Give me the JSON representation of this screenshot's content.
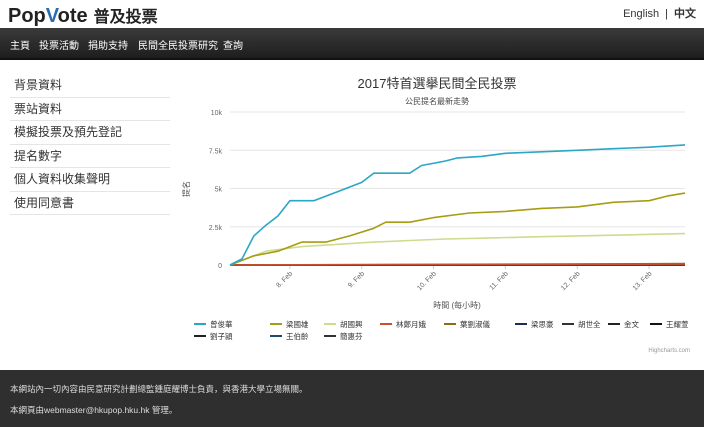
{
  "site": {
    "logo_left": "Pop",
    "logo_v": "V",
    "logo_right": "ote",
    "logo_zh": "普及投票",
    "lang_en": "English",
    "lang_sep": "|",
    "lang_zh": "中文"
  },
  "nav": [
    "主頁",
    "投票活動",
    "捐助支持",
    "民間全民投票研究",
    "查詢"
  ],
  "sidebar": [
    "背景資料",
    "票站資料",
    "模擬投票及預先登記",
    "提名數字",
    "個人資料收集聲明",
    "使用同意書"
  ],
  "chart_data": {
    "type": "line",
    "title": "2017特首選擧民間全民投票",
    "subtitle": "公民提名最新走勢",
    "xlabel": "時間 (每小時)",
    "ylabel": "提名",
    "y_ticks": [
      "0",
      "2.5k",
      "5k",
      "7.5k",
      "10k"
    ],
    "ylim": [
      0,
      10000
    ],
    "x_ticks": [
      "8. Feb",
      "9. Feb",
      "10. Feb",
      "11. Feb",
      "12. Feb",
      "13. Feb"
    ],
    "xlim": [
      "2017-02-07T04:00",
      "2017-02-13T12:00"
    ],
    "credit": "Highcharts.com",
    "series": [
      {
        "name": "曾俊華",
        "color": "#2aa6c6",
        "x": [
          "2017-02-07T04:00",
          "2017-02-07T08:00",
          "2017-02-07T12:00",
          "2017-02-07T16:00",
          "2017-02-07T20:00",
          "2017-02-08T00:00",
          "2017-02-08T04:00",
          "2017-02-08T08:00",
          "2017-02-08T16:00",
          "2017-02-08T20:00",
          "2017-02-09T00:00",
          "2017-02-09T04:00",
          "2017-02-09T08:00",
          "2017-02-09T16:00",
          "2017-02-09T20:00",
          "2017-02-10T04:00",
          "2017-02-10T08:00",
          "2017-02-10T16:00",
          "2017-02-11T00:00",
          "2017-02-11T12:00",
          "2017-02-12T00:00",
          "2017-02-12T12:00",
          "2017-02-13T00:00",
          "2017-02-13T12:00"
        ],
        "y": [
          0,
          400,
          1900,
          2600,
          3200,
          4200,
          4200,
          4200,
          4800,
          5100,
          5400,
          6000,
          6000,
          6000,
          6500,
          6800,
          7000,
          7100,
          7300,
          7400,
          7500,
          7600,
          7700,
          7850
        ]
      },
      {
        "name": "梁國雄",
        "color": "#a89c13",
        "x": [
          "2017-02-07T04:00",
          "2017-02-07T12:00",
          "2017-02-07T20:00",
          "2017-02-08T04:00",
          "2017-02-08T12:00",
          "2017-02-08T20:00",
          "2017-02-09T04:00",
          "2017-02-09T08:00",
          "2017-02-09T16:00",
          "2017-02-10T00:00",
          "2017-02-10T12:00",
          "2017-02-11T00:00",
          "2017-02-11T12:00",
          "2017-02-12T00:00",
          "2017-02-12T12:00",
          "2017-02-13T00:00",
          "2017-02-13T06:00",
          "2017-02-13T12:00"
        ],
        "y": [
          0,
          600,
          900,
          1500,
          1500,
          1900,
          2400,
          2800,
          2800,
          3100,
          3400,
          3500,
          3700,
          3800,
          4100,
          4200,
          4500,
          4700
        ]
      },
      {
        "name": "胡國興",
        "color": "#cddc8f",
        "x": [
          "2017-02-07T04:00",
          "2017-02-07T16:00",
          "2017-02-08T04:00",
          "2017-02-08T16:00",
          "2017-02-09T04:00",
          "2017-02-09T16:00",
          "2017-02-10T04:00",
          "2017-02-10T16:00",
          "2017-02-11T12:00",
          "2017-02-12T12:00",
          "2017-02-13T12:00"
        ],
        "y": [
          0,
          900,
          1200,
          1350,
          1500,
          1600,
          1700,
          1750,
          1850,
          1950,
          2050
        ]
      },
      {
        "name": "林鄭月娥",
        "color": "#c8502e",
        "x": [
          "2017-02-07T04:00",
          "2017-02-13T12:00"
        ],
        "y": [
          0,
          60
        ]
      },
      {
        "name": "葉劉淑儀",
        "color": "#8a6d1c",
        "x": [
          "2017-02-07T04:00",
          "2017-02-13T12:00"
        ],
        "y": [
          0,
          90
        ]
      },
      {
        "name": "梁思豪",
        "color": "#1f2d55",
        "x": [
          "2017-02-07T04:00",
          "2017-02-13T12:00"
        ],
        "y": [
          0,
          20
        ]
      },
      {
        "name": "胡世全",
        "color": "#333333",
        "x": [
          "2017-02-07T04:00",
          "2017-02-13T12:00"
        ],
        "y": [
          0,
          20
        ]
      },
      {
        "name": "金文",
        "color": "#222222",
        "x": [
          "2017-02-07T04:00",
          "2017-02-13T12:00"
        ],
        "y": [
          0,
          10
        ]
      },
      {
        "name": "王耀萱",
        "color": "#111111",
        "x": [
          "2017-02-07T04:00",
          "2017-02-13T12:00"
        ],
        "y": [
          0,
          10
        ]
      },
      {
        "name": "劉子頴",
        "color": "#222222",
        "x": [
          "2017-02-07T04:00",
          "2017-02-13T12:00"
        ],
        "y": [
          0,
          10
        ]
      },
      {
        "name": "王伯齡",
        "color": "#1a4b6e",
        "x": [
          "2017-02-07T04:00",
          "2017-02-13T12:00"
        ],
        "y": [
          0,
          10
        ]
      },
      {
        "name": "簡惠芬",
        "color": "#333333",
        "x": [
          "2017-02-07T04:00",
          "2017-02-13T12:00"
        ],
        "y": [
          0,
          10
        ]
      }
    ]
  },
  "footer": {
    "line1": "本網站內一切內容由民意研究計劃總監鍾庭耀博士負責，與香港大學立場無關。",
    "line2": "本網頁由webmaster@hkupop.hku.hk 管理。"
  }
}
